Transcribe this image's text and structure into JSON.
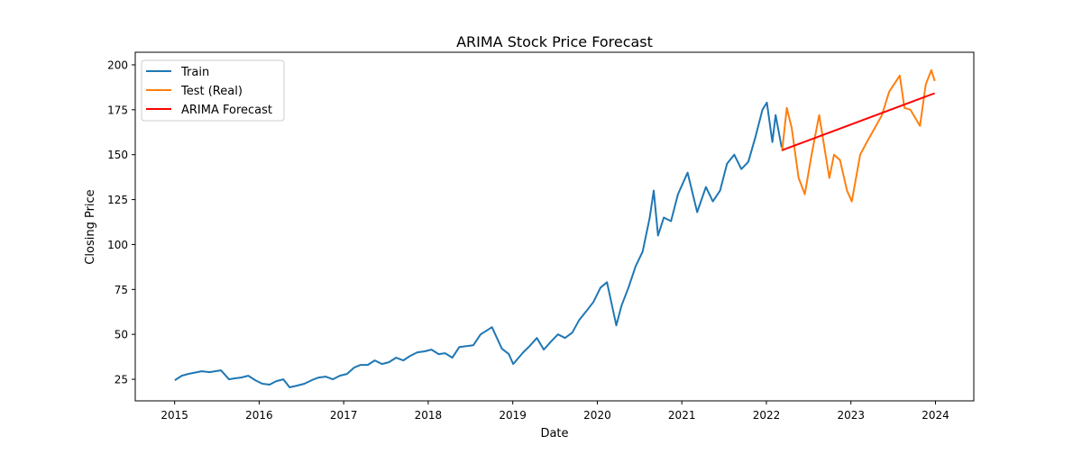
{
  "chart_data": {
    "type": "line",
    "title": "ARIMA Stock Price Forecast",
    "xlabel": "Date",
    "ylabel": "Closing Price",
    "xlim": [
      "2014-07-15",
      "2024-06-15"
    ],
    "ylim": [
      13,
      207
    ],
    "xticks": [
      "2015",
      "2016",
      "2017",
      "2018",
      "2019",
      "2020",
      "2021",
      "2022",
      "2023",
      "2024"
    ],
    "yticks": [
      25,
      50,
      75,
      100,
      125,
      150,
      175,
      200
    ],
    "grid": false,
    "legend": "top-left",
    "series": [
      {
        "name": "Train",
        "color": "#1f77b4",
        "points": [
          [
            "2015-01-02",
            24.5
          ],
          [
            "2015-02-01",
            27
          ],
          [
            "2015-03-01",
            28
          ],
          [
            "2015-04-28",
            29.5
          ],
          [
            "2015-06-01",
            29
          ],
          [
            "2015-07-20",
            30
          ],
          [
            "2015-08-24",
            25
          ],
          [
            "2015-09-15",
            25.5
          ],
          [
            "2015-10-15",
            26
          ],
          [
            "2015-11-15",
            27
          ],
          [
            "2015-12-15",
            24.5
          ],
          [
            "2016-01-15",
            22.5
          ],
          [
            "2016-02-15",
            22
          ],
          [
            "2016-03-15",
            24
          ],
          [
            "2016-04-15",
            25
          ],
          [
            "2016-05-12",
            20.5
          ],
          [
            "2016-06-15",
            21.5
          ],
          [
            "2016-07-15",
            22.5
          ],
          [
            "2016-08-15",
            24.5
          ],
          [
            "2016-09-15",
            26
          ],
          [
            "2016-10-15",
            26.5
          ],
          [
            "2016-11-15",
            25
          ],
          [
            "2016-12-15",
            27
          ],
          [
            "2017-01-15",
            28
          ],
          [
            "2017-02-15",
            31.5
          ],
          [
            "2017-03-15",
            33
          ],
          [
            "2017-04-15",
            33
          ],
          [
            "2017-05-15",
            35.5
          ],
          [
            "2017-06-15",
            33.5
          ],
          [
            "2017-07-15",
            34.5
          ],
          [
            "2017-08-15",
            37
          ],
          [
            "2017-09-15",
            35.5
          ],
          [
            "2017-10-15",
            38
          ],
          [
            "2017-11-15",
            40
          ],
          [
            "2017-12-15",
            40.5
          ],
          [
            "2018-01-15",
            41.5
          ],
          [
            "2018-02-15",
            39
          ],
          [
            "2018-03-15",
            39.5
          ],
          [
            "2018-04-15",
            37
          ],
          [
            "2018-05-15",
            43
          ],
          [
            "2018-06-15",
            43.5
          ],
          [
            "2018-07-15",
            44
          ],
          [
            "2018-08-15",
            50
          ],
          [
            "2018-09-15",
            52.5
          ],
          [
            "2018-10-03",
            54
          ],
          [
            "2018-11-15",
            42
          ],
          [
            "2018-12-15",
            39
          ],
          [
            "2019-01-03",
            33.5
          ],
          [
            "2019-02-15",
            40
          ],
          [
            "2019-03-15",
            43.5
          ],
          [
            "2019-04-15",
            48
          ],
          [
            "2019-05-15",
            41.5
          ],
          [
            "2019-06-15",
            46
          ],
          [
            "2019-07-15",
            50
          ],
          [
            "2019-08-15",
            48
          ],
          [
            "2019-09-15",
            51
          ],
          [
            "2019-10-15",
            58
          ],
          [
            "2019-11-15",
            63
          ],
          [
            "2019-12-15",
            68
          ],
          [
            "2020-01-15",
            76
          ],
          [
            "2020-02-12",
            79
          ],
          [
            "2020-03-23",
            55
          ],
          [
            "2020-04-15",
            66
          ],
          [
            "2020-05-15",
            76
          ],
          [
            "2020-06-15",
            88
          ],
          [
            "2020-07-15",
            96
          ],
          [
            "2020-08-15",
            115
          ],
          [
            "2020-09-01",
            130
          ],
          [
            "2020-09-20",
            105
          ],
          [
            "2020-10-15",
            115
          ],
          [
            "2020-11-15",
            113
          ],
          [
            "2020-12-15",
            128
          ],
          [
            "2021-01-26",
            140
          ],
          [
            "2021-03-08",
            118
          ],
          [
            "2021-04-15",
            132
          ],
          [
            "2021-05-15",
            124
          ],
          [
            "2021-06-15",
            130
          ],
          [
            "2021-07-15",
            145
          ],
          [
            "2021-08-15",
            150
          ],
          [
            "2021-09-15",
            142
          ],
          [
            "2021-10-15",
            146
          ],
          [
            "2021-11-15",
            160
          ],
          [
            "2021-12-15",
            175
          ],
          [
            "2022-01-03",
            179
          ],
          [
            "2022-01-27",
            157
          ],
          [
            "2022-02-10",
            172
          ],
          [
            "2022-03-08",
            154
          ]
        ]
      },
      {
        "name": "Test (Real)",
        "color": "#ff7f0e",
        "points": [
          [
            "2022-03-10",
            152
          ],
          [
            "2022-03-30",
            176
          ],
          [
            "2022-04-20",
            165
          ],
          [
            "2022-05-20",
            137
          ],
          [
            "2022-06-16",
            128
          ],
          [
            "2022-07-15",
            150
          ],
          [
            "2022-08-17",
            172
          ],
          [
            "2022-09-30",
            137
          ],
          [
            "2022-10-20",
            150
          ],
          [
            "2022-11-15",
            147
          ],
          [
            "2022-12-15",
            130
          ],
          [
            "2023-01-05",
            124
          ],
          [
            "2023-02-10",
            150
          ],
          [
            "2023-03-15",
            158
          ],
          [
            "2023-04-15",
            165
          ],
          [
            "2023-05-15",
            172
          ],
          [
            "2023-06-15",
            185
          ],
          [
            "2023-07-31",
            194
          ],
          [
            "2023-08-20",
            176
          ],
          [
            "2023-09-15",
            175
          ],
          [
            "2023-10-26",
            166
          ],
          [
            "2023-11-20",
            189
          ],
          [
            "2023-12-14",
            197
          ],
          [
            "2023-12-29",
            191
          ]
        ]
      },
      {
        "name": "ARIMA Forecast",
        "color": "#ff0000",
        "points": [
          [
            "2022-03-10",
            152.5
          ],
          [
            "2023-12-29",
            184.2
          ]
        ]
      }
    ]
  }
}
